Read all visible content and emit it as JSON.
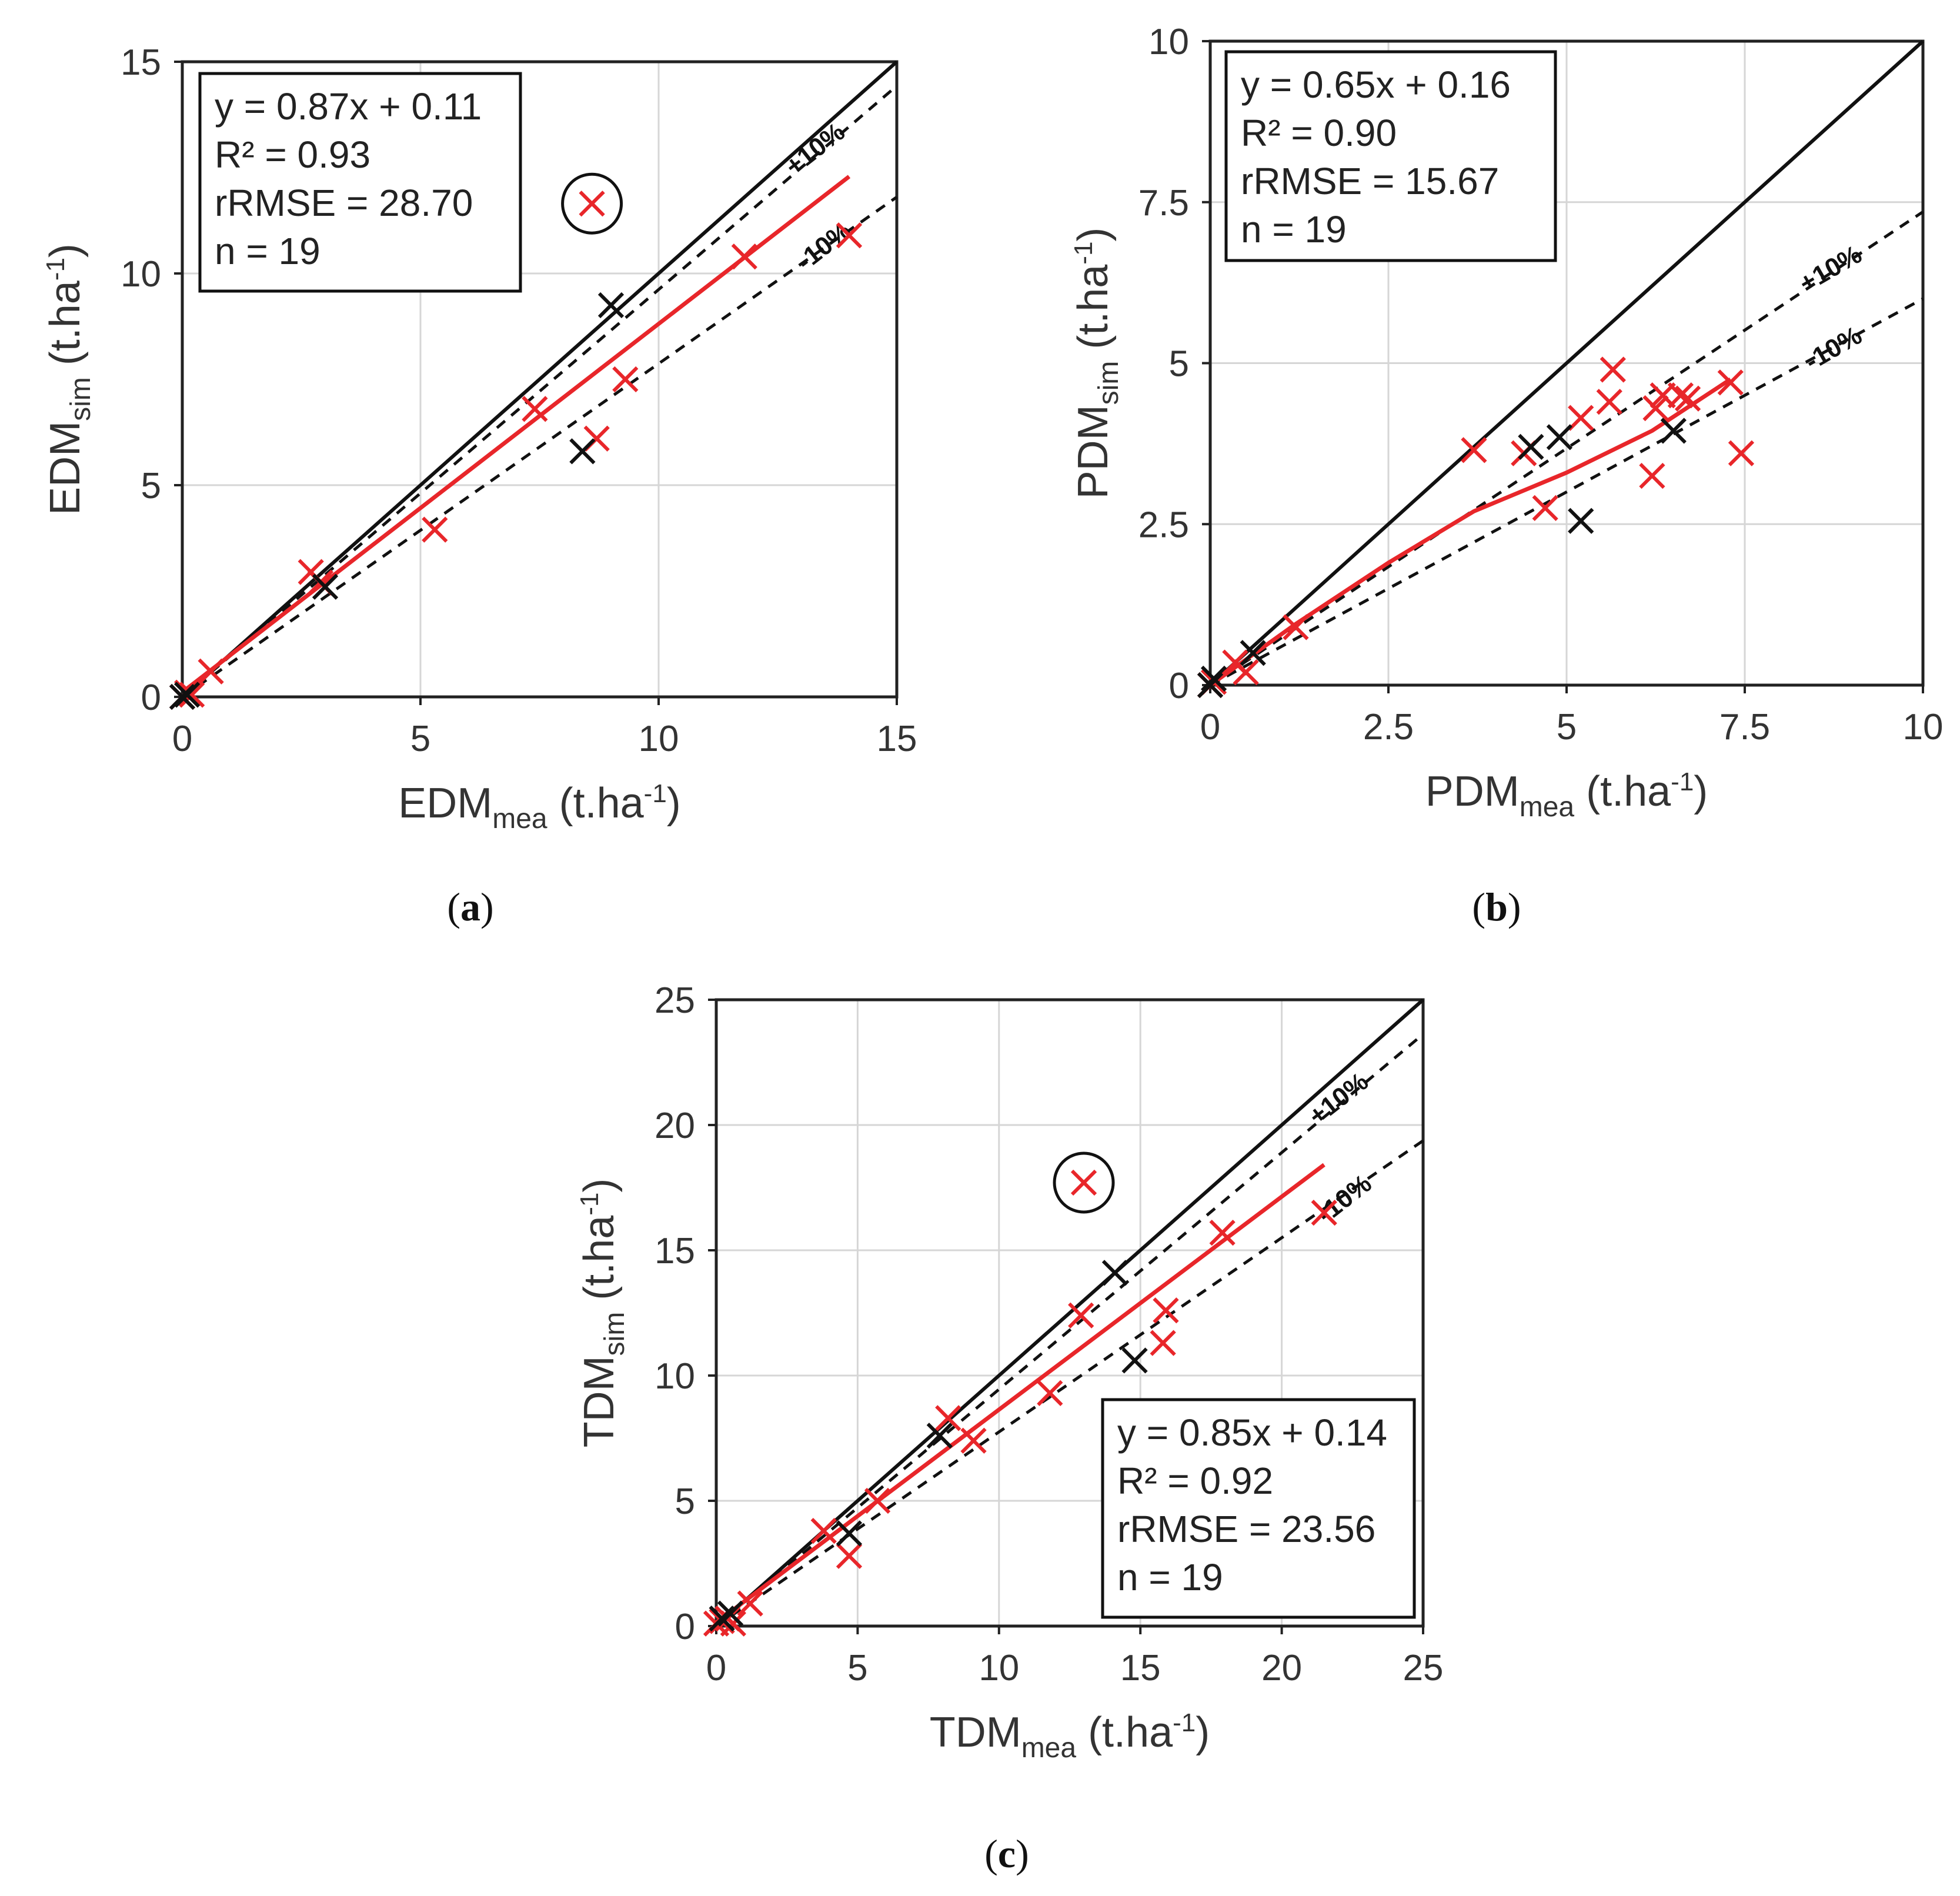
{
  "colors": {
    "red_series": "#e8262a",
    "black_series": "#111111",
    "grid": "#d6d6d6"
  },
  "chart_data": [
    {
      "type": "scatter",
      "panel_label": "a",
      "xlabel": {
        "main": "EDM",
        "sub": "mea",
        "unit_pre": " (t.ha",
        "unit_sup": "-1",
        "unit_post": ")"
      },
      "ylabel": {
        "main": "EDM",
        "sub": "sim",
        "unit_pre": " (t.ha",
        "unit_sup": "-1",
        "unit_post": ")"
      },
      "xlim": [
        0,
        15
      ],
      "ylim": [
        0,
        15
      ],
      "xticks": [
        0,
        5,
        10,
        15
      ],
      "yticks": [
        0,
        5,
        10,
        15
      ],
      "grid": true,
      "stats": [
        "y = 0.87x + 0.11",
        "R² = 0.93",
        "rRMSE = 28.70",
        "n = 19"
      ],
      "stats_position": "top-left",
      "band_labels": [
        "+10%",
        "-10%"
      ],
      "reference_lines": {
        "one_to_one_slope": 1.0,
        "plus10_slope": 0.962,
        "minus10_slope": 0.787
      },
      "regression": {
        "slope": 0.87,
        "intercept": 0.11,
        "x_range": [
          0,
          14
        ]
      },
      "series": [
        {
          "name": "red",
          "color": "#e8262a",
          "points": [
            [
              0,
              0
            ],
            [
              0.1,
              0.1
            ],
            [
              0.2,
              0.05
            ],
            [
              0.6,
              0.6
            ],
            [
              2.7,
              2.95
            ],
            [
              2.9,
              2.7
            ],
            [
              5.3,
              3.95
            ],
            [
              7.4,
              6.8
            ],
            [
              8.7,
              6.1
            ],
            [
              9.3,
              7.5
            ],
            [
              11.8,
              10.4
            ],
            [
              14,
              10.9
            ],
            [
              8.6,
              11.65
            ]
          ]
        },
        {
          "name": "black",
          "color": "#111111",
          "points": [
            [
              0,
              0
            ],
            [
              0.1,
              0.05
            ],
            [
              3.0,
              2.6
            ],
            [
              8.4,
              5.8
            ],
            [
              9.0,
              9.25
            ]
          ]
        }
      ],
      "outlier": [
        8.6,
        11.65
      ]
    },
    {
      "type": "scatter",
      "panel_label": "b",
      "xlabel": {
        "main": "PDM",
        "sub": "mea",
        "unit_pre": " (t.ha",
        "unit_sup": "-1",
        "unit_post": ")"
      },
      "ylabel": {
        "main": "PDM",
        "sub": "sim",
        "unit_pre": " (t.ha",
        "unit_sup": "-1",
        "unit_post": ")"
      },
      "xlim": [
        0,
        10
      ],
      "ylim": [
        0,
        10
      ],
      "xticks": [
        0,
        2.5,
        5,
        7.5,
        10
      ],
      "yticks": [
        0,
        2.5,
        5,
        7.5,
        10
      ],
      "grid": true,
      "stats": [
        "y = 0.65x + 0.16",
        "R² = 0.90",
        "rRMSE = 15.67",
        "n = 19"
      ],
      "stats_position": "top-left",
      "band_labels": [
        "+10%",
        "-10%"
      ],
      "reference_lines": {
        "one_to_one_slope": 1.0,
        "plus10_slope": 0.735,
        "minus10_slope": 0.6
      },
      "regression": {
        "slope": 0.65,
        "intercept": 0.16,
        "x_range": [
          0,
          7.3
        ],
        "curve": [
          [
            0,
            0
          ],
          [
            1.2,
            0.95
          ],
          [
            2.5,
            1.9
          ],
          [
            3.7,
            2.7
          ],
          [
            5,
            3.3
          ],
          [
            6.2,
            3.95
          ],
          [
            7.3,
            4.75
          ]
        ]
      },
      "series": [
        {
          "name": "red",
          "color": "#e8262a",
          "points": [
            [
              0,
              0
            ],
            [
              0.05,
              0.05
            ],
            [
              0.35,
              0.35
            ],
            [
              0.5,
              0.2
            ],
            [
              1.2,
              0.9
            ],
            [
              3.7,
              3.65
            ],
            [
              4.4,
              3.6
            ],
            [
              4.7,
              2.75
            ],
            [
              5.2,
              4.15
            ],
            [
              5.6,
              4.4
            ],
            [
              5.65,
              4.9
            ],
            [
              6.2,
              3.25
            ],
            [
              6.25,
              4.3
            ],
            [
              6.35,
              4.5
            ],
            [
              6.6,
              4.5
            ],
            [
              6.7,
              4.45
            ],
            [
              7.3,
              4.7
            ],
            [
              7.45,
              3.6
            ]
          ]
        },
        {
          "name": "black",
          "color": "#111111",
          "points": [
            [
              0,
              0
            ],
            [
              0.05,
              0.1
            ],
            [
              0.6,
              0.5
            ],
            [
              4.5,
              3.7
            ],
            [
              4.9,
              3.85
            ],
            [
              5.2,
              2.55
            ],
            [
              6.5,
              3.95
            ]
          ]
        }
      ]
    },
    {
      "type": "scatter",
      "panel_label": "c",
      "xlabel": {
        "main": "TDM",
        "sub": "mea",
        "unit_pre": " (t.ha",
        "unit_sup": "-1",
        "unit_post": ")"
      },
      "ylabel": {
        "main": "TDM",
        "sub": "sim",
        "unit_pre": " (t.ha",
        "unit_sup": "-1",
        "unit_post": ")"
      },
      "xlim": [
        0,
        25
      ],
      "ylim": [
        0,
        25
      ],
      "xticks": [
        0,
        5,
        10,
        15,
        20,
        25
      ],
      "yticks": [
        0,
        5,
        10,
        15,
        20,
        25
      ],
      "grid": true,
      "stats": [
        "y = 0.85x + 0.14",
        "R² = 0.92",
        "rRMSE = 23.56",
        "n = 19"
      ],
      "stats_position": "bottom-right",
      "band_labels": [
        "+10%",
        "-10%"
      ],
      "reference_lines": {
        "one_to_one_slope": 1.0,
        "plus10_slope": 0.945,
        "minus10_slope": 0.775
      },
      "regression": {
        "slope": 0.85,
        "intercept": 0.14,
        "x_range": [
          0,
          21.5
        ]
      },
      "series": [
        {
          "name": "red",
          "color": "#e8262a",
          "points": [
            [
              0,
              0.1
            ],
            [
              0.2,
              0.2
            ],
            [
              0.4,
              0.3
            ],
            [
              0.6,
              0.1
            ],
            [
              1.2,
              0.9
            ],
            [
              3.8,
              3.8
            ],
            [
              4.7,
              2.8
            ],
            [
              5.7,
              5.0
            ],
            [
              8.2,
              8.3
            ],
            [
              9.1,
              7.4
            ],
            [
              11.8,
              9.3
            ],
            [
              12.9,
              12.4
            ],
            [
              15.8,
              11.3
            ],
            [
              15.9,
              12.6
            ],
            [
              17.9,
              15.7
            ],
            [
              21.5,
              16.5
            ],
            [
              13.0,
              17.7
            ]
          ]
        },
        {
          "name": "black",
          "color": "#111111",
          "points": [
            [
              0.2,
              0.3
            ],
            [
              0.5,
              0.5
            ],
            [
              4.7,
              3.7
            ],
            [
              7.9,
              7.6
            ],
            [
              14.1,
              14.1
            ],
            [
              14.8,
              10.6
            ]
          ]
        }
      ],
      "outlier": [
        13.0,
        17.7
      ]
    }
  ]
}
